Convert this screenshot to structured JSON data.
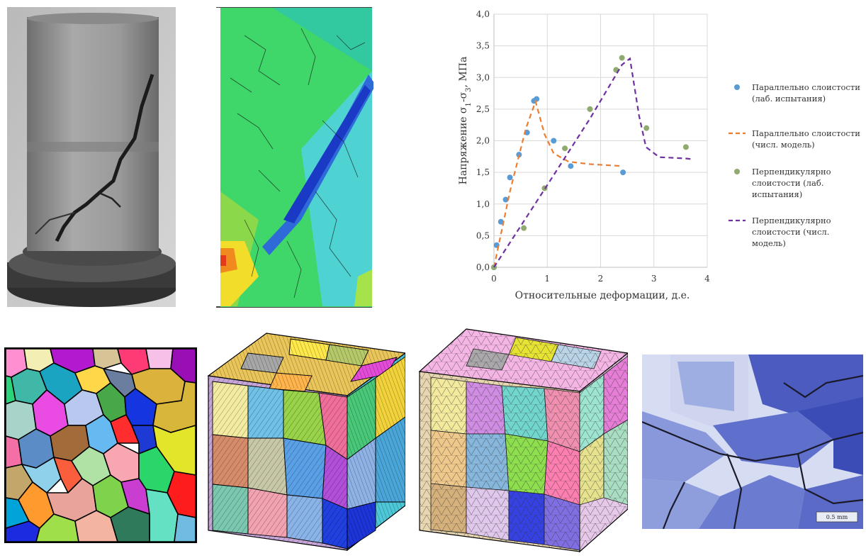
{
  "figure": {
    "scale_bar_label": "0.5 mm"
  },
  "chart_data": {
    "type": "scatter",
    "title": "",
    "xlabel": "Относительные деформации, д.е.",
    "ylabel_parts": [
      "Напряжение σ",
      "1",
      "-σ",
      "3",
      ", МПа"
    ],
    "xlim": [
      0,
      4
    ],
    "ylim": [
      0,
      4
    ],
    "x_ticks": [
      "0",
      "1",
      "2",
      "3",
      "4"
    ],
    "y_ticks": [
      "0,0",
      "0,5",
      "1,0",
      "1,5",
      "2,0",
      "2,5",
      "3,0",
      "3,5",
      "4,0"
    ],
    "grid": true,
    "legend_position": "right",
    "series": [
      {
        "name_lines": [
          "Параллельно слоистости",
          "(лаб. испытания)"
        ],
        "style": "markers",
        "color": "#5b9bd5",
        "points": [
          [
            0,
            0
          ],
          [
            0.05,
            0.35
          ],
          [
            0.13,
            0.72
          ],
          [
            0.22,
            1.07
          ],
          [
            0.3,
            1.42
          ],
          [
            0.47,
            1.78
          ],
          [
            0.62,
            2.13
          ],
          [
            0.75,
            2.63
          ],
          [
            0.8,
            2.66
          ],
          [
            1.12,
            2.0
          ],
          [
            1.44,
            1.6
          ],
          [
            2.42,
            1.5
          ]
        ]
      },
      {
        "name_lines": [
          "Параллельно слоистости",
          "(числ. модель)"
        ],
        "style": "dashed",
        "color": "#ed7d31",
        "points": [
          [
            0,
            0
          ],
          [
            0.3,
            1.2
          ],
          [
            0.6,
            2.2
          ],
          [
            0.78,
            2.62
          ],
          [
            0.95,
            2.1
          ],
          [
            1.12,
            1.8
          ],
          [
            1.4,
            1.67
          ],
          [
            1.8,
            1.63
          ],
          [
            2.4,
            1.6
          ]
        ]
      },
      {
        "name_lines": [
          "Перпендикулярно",
          "слоистости (лаб.",
          "испытания)"
        ],
        "style": "markers",
        "color": "#8faa6f",
        "points": [
          [
            0,
            0
          ],
          [
            0.56,
            0.62
          ],
          [
            0.95,
            1.25
          ],
          [
            1.33,
            1.88
          ],
          [
            1.8,
            2.5
          ],
          [
            2.29,
            3.12
          ],
          [
            2.4,
            3.31
          ],
          [
            2.86,
            2.2
          ],
          [
            3.6,
            1.9
          ]
        ]
      },
      {
        "name_lines": [
          "Перпендикулярно",
          "слоистости (числ.",
          "модель)"
        ],
        "style": "dashed",
        "color": "#7030a0",
        "points": [
          [
            0,
            0
          ],
          [
            1.0,
            1.3
          ],
          [
            1.8,
            2.35
          ],
          [
            2.4,
            3.2
          ],
          [
            2.55,
            3.3
          ],
          [
            2.72,
            2.4
          ],
          [
            2.85,
            1.9
          ],
          [
            3.1,
            1.74
          ],
          [
            3.6,
            1.72
          ],
          [
            3.7,
            1.71
          ]
        ]
      }
    ]
  }
}
